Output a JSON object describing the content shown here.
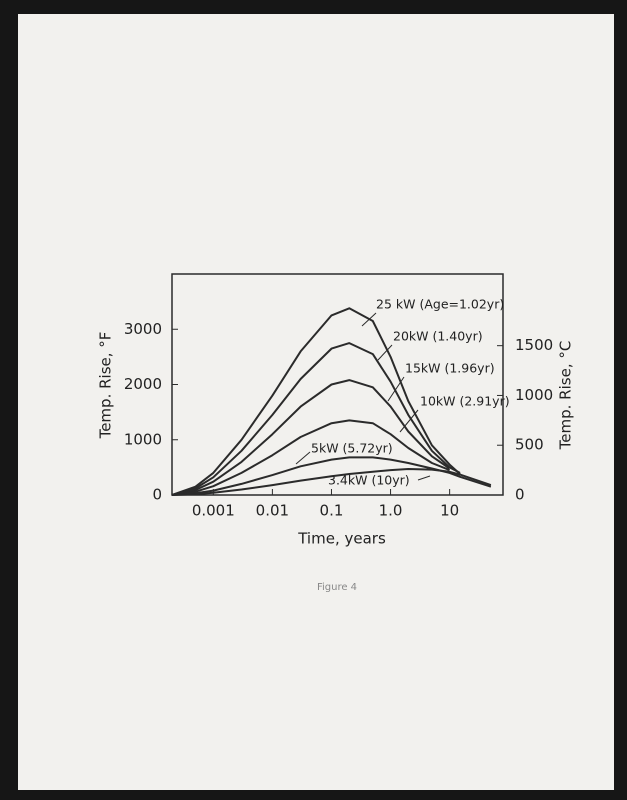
{
  "chart_data": {
    "type": "line",
    "xscale": "log",
    "grid": false,
    "xlabel": "Time, years",
    "ylabel": "Temp. Rise, °F",
    "y2label": "Temp. Rise, °C",
    "caption": "Figure 4",
    "x": [
      0.0002,
      0.0005,
      0.001,
      0.003,
      0.01,
      0.03,
      0.1,
      0.2,
      0.5,
      1,
      2,
      5,
      10,
      15,
      50
    ],
    "xlim": [
      0.0002,
      80
    ],
    "xticks": [
      0.001,
      0.01,
      0.1,
      {
        "value": 1,
        "label": "1.0"
      },
      10
    ],
    "ylim": [
      0,
      4000
    ],
    "yticks": [
      0,
      1000,
      2000,
      3000
    ],
    "y2lim": [
      0,
      2220
    ],
    "y2ticks": [
      0,
      500,
      1000,
      1500
    ],
    "series": [
      {
        "name": "25 kW (Age=1.02yr)",
        "color": "#2b2b2b",
        "values": [
          0,
          150,
          400,
          1000,
          1800,
          2600,
          3250,
          3380,
          3150,
          2500,
          1700,
          900,
          550,
          380,
          null
        ]
      },
      {
        "name": "20kW (1.40yr)",
        "color": "#2b2b2b",
        "values": [
          0,
          120,
          320,
          800,
          1450,
          2100,
          2650,
          2750,
          2550,
          2050,
          1450,
          800,
          500,
          400,
          null
        ]
      },
      {
        "name": "15kW (1.96yr)",
        "color": "#2b2b2b",
        "values": [
          0,
          90,
          240,
          600,
          1100,
          1600,
          2000,
          2080,
          1950,
          1600,
          1150,
          700,
          480,
          null,
          null
        ]
      },
      {
        "name": "10kW (2.91yr)",
        "color": "#2b2b2b",
        "values": [
          0,
          60,
          160,
          400,
          720,
          1050,
          1300,
          1350,
          1300,
          1100,
          850,
          580,
          450,
          null,
          null
        ]
      },
      {
        "name": "5kW (5.72yr)",
        "color": "#2b2b2b",
        "values": [
          0,
          30,
          80,
          200,
          360,
          520,
          640,
          680,
          680,
          640,
          580,
          480,
          400,
          330,
          150
        ]
      },
      {
        "name": "3.4kW (10yr)",
        "color": "#2b2b2b",
        "values": [
          0,
          15,
          40,
          100,
          180,
          260,
          340,
          380,
          420,
          450,
          470,
          460,
          420,
          370,
          180
        ]
      }
    ]
  }
}
